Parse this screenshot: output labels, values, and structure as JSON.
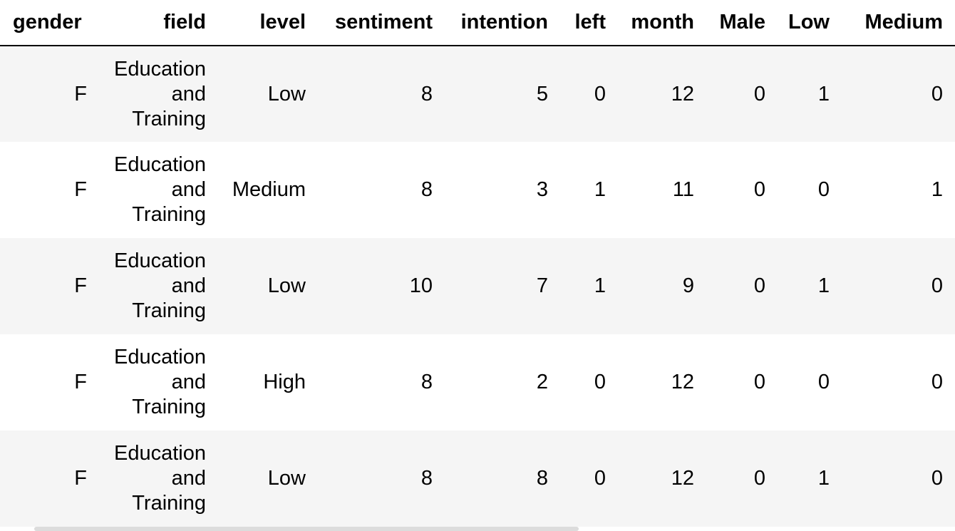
{
  "table": {
    "columns": [
      "gender",
      "field",
      "level",
      "sentiment",
      "intention",
      "left",
      "month",
      "Male",
      "Low",
      "Medium"
    ],
    "rows": [
      {
        "gender": "F",
        "field": [
          "Education",
          "and",
          "Training"
        ],
        "level": "Low",
        "sentiment": "8",
        "intention": "5",
        "left": "0",
        "month": "12",
        "Male": "0",
        "Low": "1",
        "Medium": "0"
      },
      {
        "gender": "F",
        "field": [
          "Education",
          "and",
          "Training"
        ],
        "level": "Medium",
        "sentiment": "8",
        "intention": "3",
        "left": "1",
        "month": "11",
        "Male": "0",
        "Low": "0",
        "Medium": "1"
      },
      {
        "gender": "F",
        "field": [
          "Education",
          "and",
          "Training"
        ],
        "level": "Low",
        "sentiment": "10",
        "intention": "7",
        "left": "1",
        "month": "9",
        "Male": "0",
        "Low": "1",
        "Medium": "0"
      },
      {
        "gender": "F",
        "field": [
          "Education",
          "and",
          "Training"
        ],
        "level": "High",
        "sentiment": "8",
        "intention": "2",
        "left": "0",
        "month": "12",
        "Male": "0",
        "Low": "0",
        "Medium": "0"
      },
      {
        "gender": "F",
        "field": [
          "Education",
          "and",
          "Training"
        ],
        "level": "Low",
        "sentiment": "8",
        "intention": "8",
        "left": "0",
        "month": "12",
        "Male": "0",
        "Low": "1",
        "Medium": "0"
      }
    ]
  },
  "colors": {
    "stripe": "#f5f5f5",
    "scrollbar": "#dcdcdc"
  }
}
